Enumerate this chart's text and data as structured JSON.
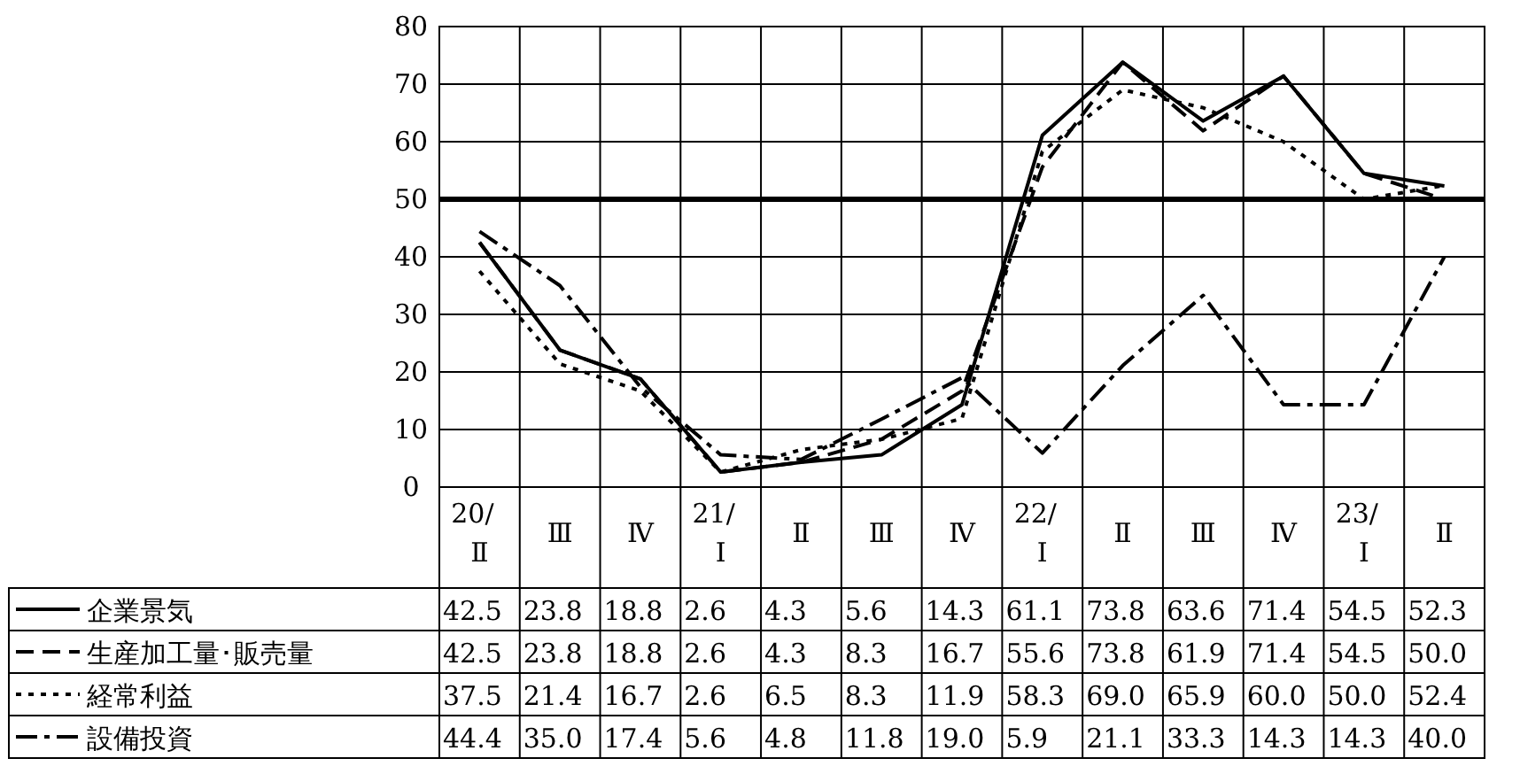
{
  "chart_data": {
    "type": "line",
    "categories": [
      "20/Ⅱ",
      "Ⅲ",
      "Ⅳ",
      "21/Ⅰ",
      "Ⅱ",
      "Ⅲ",
      "Ⅳ",
      "22/Ⅰ",
      "Ⅱ",
      "Ⅲ",
      "Ⅳ",
      "23/Ⅰ",
      "Ⅱ"
    ],
    "series": [
      {
        "name": "企業景気",
        "color": "#000000",
        "line_style": "solid",
        "values": [
          42.5,
          23.8,
          18.8,
          2.6,
          4.3,
          5.6,
          14.3,
          61.1,
          73.8,
          63.6,
          71.4,
          54.5,
          52.3
        ],
        "value_labels": [
          "42.5",
          "23.8",
          "18.8",
          "2.6",
          "4.3",
          "5.6",
          "14.3",
          "61.1",
          "73.8",
          "63.6",
          "71.4",
          "54.5",
          "52.3"
        ]
      },
      {
        "name": "生産加工量･販売量",
        "color": "#000000",
        "line_style": "dashed",
        "values": [
          42.5,
          23.8,
          18.8,
          2.6,
          4.3,
          8.3,
          16.7,
          55.6,
          73.8,
          61.9,
          71.4,
          54.5,
          50.0
        ],
        "value_labels": [
          "42.5",
          "23.8",
          "18.8",
          "2.6",
          "4.3",
          "8.3",
          "16.7",
          "55.6",
          "73.8",
          "61.9",
          "71.4",
          "54.5",
          "50.0"
        ]
      },
      {
        "name": "経常利益",
        "color": "#000000",
        "line_style": "dotted",
        "values": [
          37.5,
          21.4,
          16.7,
          2.6,
          6.5,
          8.3,
          11.9,
          58.3,
          69.0,
          65.9,
          60.0,
          50.0,
          52.4
        ],
        "value_labels": [
          "37.5",
          "21.4",
          "16.7",
          "2.6",
          "6.5",
          "8.3",
          "11.9",
          "58.3",
          "69.0",
          "65.9",
          "60.0",
          "50.0",
          "52.4"
        ]
      },
      {
        "name": "設備投資",
        "color": "#000000",
        "line_style": "dashdot",
        "values": [
          44.4,
          35.0,
          17.4,
          5.6,
          4.8,
          11.8,
          19.0,
          5.9,
          21.1,
          33.3,
          14.3,
          14.3,
          40.0
        ],
        "value_labels": [
          "44.4",
          "35.0",
          "17.4",
          "5.6",
          "4.8",
          "11.8",
          "19.0",
          "5.9",
          "21.1",
          "33.3",
          "14.3",
          "14.3",
          "40.0"
        ]
      }
    ],
    "ylim": [
      0,
      80
    ],
    "yticks": [
      0,
      10,
      20,
      30,
      40,
      50,
      60,
      70,
      80
    ],
    "grid": true,
    "legend": "bottom",
    "marker": "none",
    "ref_lines": [
      {
        "axis": "y",
        "value": 50,
        "color": "#000000"
      }
    ]
  }
}
